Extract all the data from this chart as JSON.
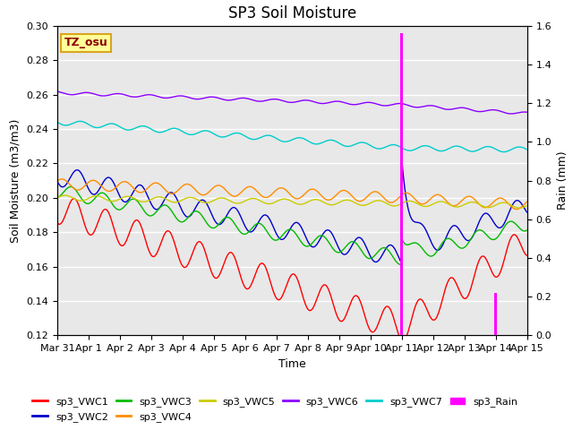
{
  "title": "SP3 Soil Moisture",
  "ylabel_left": "Soil Moisture (m3/m3)",
  "ylabel_right": "Rain (mm)",
  "xlabel": "Time",
  "ylim_left": [
    0.12,
    0.3
  ],
  "ylim_right": [
    0.0,
    1.6
  ],
  "xtick_labels": [
    "Mar 31",
    "Apr 1",
    "Apr 2",
    "Apr 3",
    "Apr 4",
    "Apr 5",
    "Apr 6",
    "Apr 7",
    "Apr 8",
    "Apr 9",
    "Apr 10",
    "Apr 11",
    "Apr 12",
    "Apr 13",
    "Apr 14",
    "Apr 15"
  ],
  "ytick_left": [
    0.12,
    0.14,
    0.16,
    0.18,
    0.2,
    0.22,
    0.24,
    0.26,
    0.28,
    0.3
  ],
  "ytick_right": [
    0.0,
    0.2,
    0.4,
    0.6,
    0.8,
    1.0,
    1.2,
    1.4,
    1.6
  ],
  "annotation_text": "TZ_osu",
  "annotation_color": "#8B0000",
  "annotation_bg": "#FFFF99",
  "annotation_border": "#DAA520",
  "colors": {
    "sp3_VWC1": "#FF0000",
    "sp3_VWC2": "#0000CD",
    "sp3_VWC3": "#00BB00",
    "sp3_VWC4": "#FF8C00",
    "sp3_VWC5": "#CCCC00",
    "sp3_VWC6": "#8B00FF",
    "sp3_VWC7": "#00CCCC",
    "sp3_Rain": "#FF00FF"
  },
  "bg_color": "#E8E8E8",
  "title_fontsize": 12,
  "axis_fontsize": 9,
  "tick_fontsize": 8,
  "legend_fontsize": 8
}
